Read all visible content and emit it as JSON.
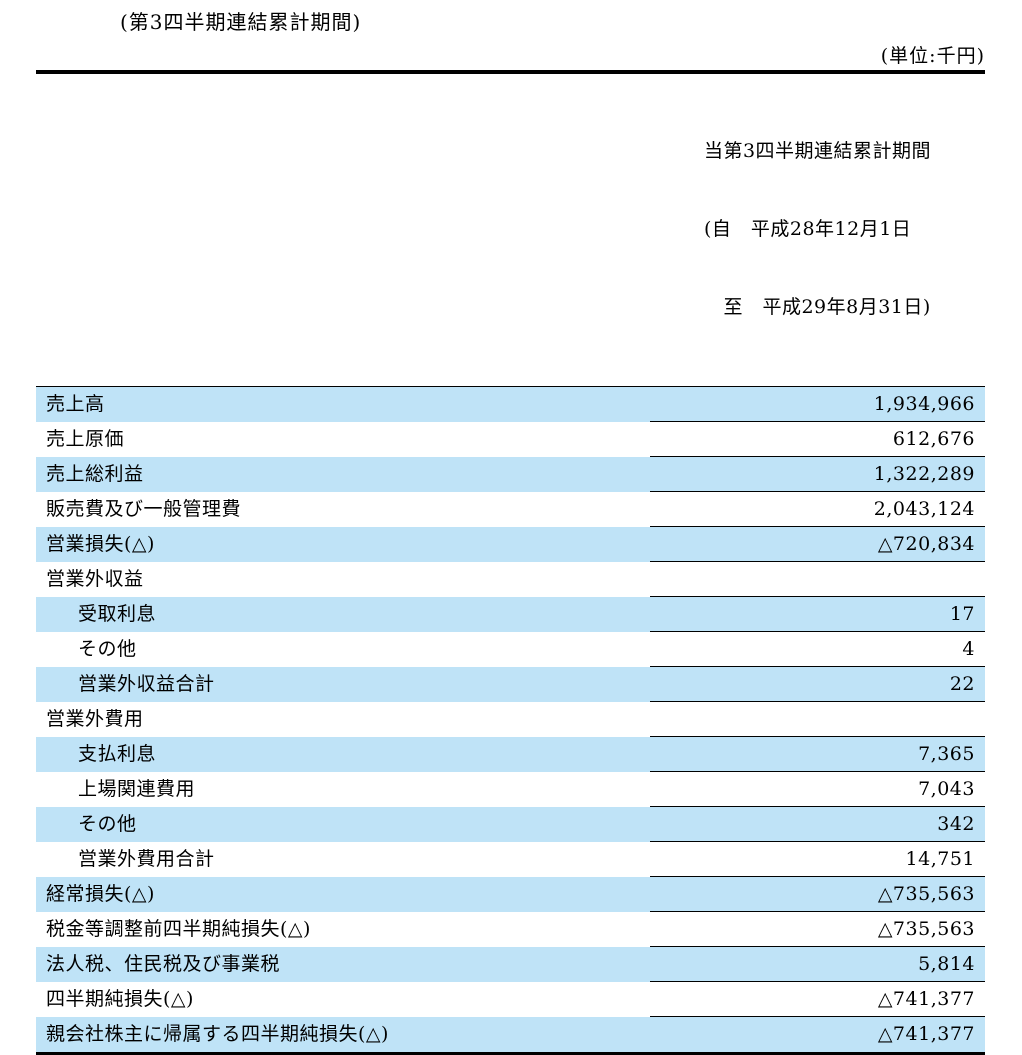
{
  "document": {
    "caption": "(第3四半期連結累計期間)",
    "unit_note": "(単位:千円)"
  },
  "table": {
    "column_header": {
      "line1": "当第3四半期連結累計期間",
      "line2": "(自　平成28年12月1日",
      "line3": "　至　平成29年8月31日)"
    },
    "rows": [
      {
        "label": "売上高",
        "value": "1,934,966",
        "indent": 0
      },
      {
        "label": "売上原価",
        "value": "612,676",
        "indent": 0
      },
      {
        "label": "売上総利益",
        "value": "1,322,289",
        "indent": 0
      },
      {
        "label": "販売費及び一般管理費",
        "value": "2,043,124",
        "indent": 0
      },
      {
        "label": "営業損失(△)",
        "value": "△720,834",
        "indent": 0
      },
      {
        "label": "営業外収益",
        "value": "",
        "indent": 0
      },
      {
        "label": "受取利息",
        "value": "17",
        "indent": 1
      },
      {
        "label": "その他",
        "value": "4",
        "indent": 1
      },
      {
        "label": "営業外収益合計",
        "value": "22",
        "indent": 1
      },
      {
        "label": "営業外費用",
        "value": "",
        "indent": 0
      },
      {
        "label": "支払利息",
        "value": "7,365",
        "indent": 1
      },
      {
        "label": "上場関連費用",
        "value": "7,043",
        "indent": 1
      },
      {
        "label": "その他",
        "value": "342",
        "indent": 1
      },
      {
        "label": "営業外費用合計",
        "value": "14,751",
        "indent": 1
      },
      {
        "label": "経常損失(△)",
        "value": "△735,563",
        "indent": 0
      },
      {
        "label": "税金等調整前四半期純損失(△)",
        "value": "△735,563",
        "indent": 0
      },
      {
        "label": "法人税、住民税及び事業税",
        "value": "5,814",
        "indent": 0
      },
      {
        "label": "四半期純損失(△)",
        "value": "△741,377",
        "indent": 0
      },
      {
        "label": "親会社株主に帰属する四半期純損失(△)",
        "value": "△741,377",
        "indent": 0
      }
    ],
    "colors": {
      "row_shade": "#bfe3f7",
      "rule": "#000000"
    }
  }
}
